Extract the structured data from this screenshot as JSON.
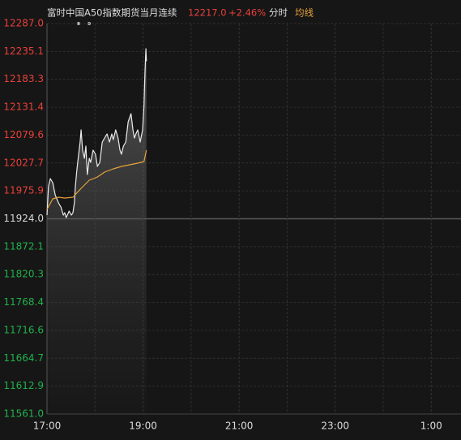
{
  "header": {
    "title": "富时中国A50指数期货当月连续",
    "last": "12217.0",
    "change": "+2.46%",
    "mode": "分时"
  },
  "chart_data": {
    "type": "line",
    "xlim": [
      17,
      25.62
    ],
    "xticks": [
      {
        "value": 17,
        "label": "17:00"
      },
      {
        "value": 19,
        "label": "19:00"
      },
      {
        "value": 21,
        "label": "21:00"
      },
      {
        "value": 23,
        "label": "23:00"
      },
      {
        "value": 25,
        "label": "1:00"
      }
    ],
    "xminor": [
      18,
      20,
      22,
      24
    ],
    "ylim": [
      11561,
      12287
    ],
    "yticks": [
      {
        "value": 12287,
        "label": "12287.0"
      },
      12235.1,
      12183.3,
      12131.4,
      12079.6,
      12027.7,
      11975.9,
      {
        "value": 11924,
        "label": "11924.0"
      },
      11872.1,
      11820.3,
      11768.4,
      11716.6,
      11664.7,
      11612.9,
      {
        "value": 11561,
        "label": "11561.0"
      }
    ],
    "baseline": 11924,
    "up_color": "#e8403a",
    "down_color": "#22b14c",
    "flat_color": "#d8d8d8",
    "grid": true,
    "series": [
      {
        "color": "#ececec",
        "x": [
          17.0,
          17.03,
          17.07,
          17.12,
          17.17,
          17.24,
          17.29,
          17.34,
          17.37,
          17.4,
          17.46,
          17.51,
          17.54,
          17.57,
          17.59,
          17.62,
          17.66,
          17.69,
          17.71,
          17.74,
          17.78,
          17.81,
          17.84,
          17.88,
          17.91,
          17.96,
          18.01,
          18.05,
          18.1,
          18.15,
          18.2,
          18.25,
          18.3,
          18.35,
          18.38,
          18.43,
          18.48,
          18.52,
          18.55,
          18.59,
          18.64,
          18.69,
          18.72,
          18.75,
          18.79,
          18.82,
          18.85,
          18.89,
          18.94,
          18.99,
          19.02,
          19.04,
          19.06,
          19.07
        ],
        "values": [
          11930.8,
          11983.6,
          11998.7,
          11991.2,
          11968.5,
          11953.4,
          11945.9,
          11930.8,
          11935.3,
          11926.2,
          11938.3,
          11930.8,
          11935.3,
          11953.4,
          11983.6,
          12013.8,
          12044.0,
          12066.6,
          12089.3,
          12051.5,
          12036.4,
          12059.1,
          12006.3,
          12036.4,
          12028.9,
          12051.5,
          12044.0,
          12021.3,
          12028.9,
          12066.6,
          12074.2,
          12081.7,
          12066.6,
          12081.7,
          12071.2,
          12089.3,
          12074.2,
          12051.5,
          12044.0,
          12059.1,
          12066.6,
          12104.4,
          12111.9,
          12119.5,
          12089.3,
          12074.2,
          12081.7,
          12089.3,
          12066.6,
          12089.3,
          12134.6,
          12194.9,
          12240.2,
          12217.0
        ]
      },
      {
        "name": "均线",
        "color": "#e8a33b",
        "x": [
          17.0,
          17.12,
          17.24,
          17.37,
          17.54,
          17.71,
          17.88,
          18.05,
          18.2,
          18.38,
          18.55,
          18.72,
          18.89,
          19.02,
          19.07
        ],
        "values": [
          11941.3,
          11961.0,
          11964.0,
          11962.5,
          11964.0,
          11980.6,
          11995.7,
          12001.7,
          12010.8,
          12016.8,
          12021.3,
          12024.4,
          12027.4,
          12030.4,
          12051.5
        ]
      }
    ]
  }
}
